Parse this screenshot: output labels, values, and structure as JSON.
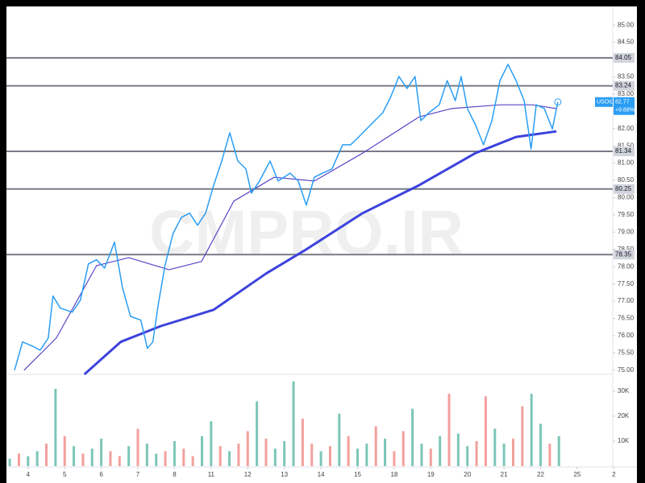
{
  "chart_data": {
    "type": "line",
    "watermark": "CMPRO.IR",
    "xlim": [
      -0.59,
      15.97
    ],
    "xticks": [
      {
        "value": 0,
        "label": "4"
      },
      {
        "value": 1,
        "label": "5"
      },
      {
        "value": 2,
        "label": "6"
      },
      {
        "value": 3,
        "label": "7"
      },
      {
        "value": 4,
        "label": "8"
      },
      {
        "value": 5,
        "label": "11"
      },
      {
        "value": 6,
        "label": "12"
      },
      {
        "value": 7,
        "label": "13"
      },
      {
        "value": 8,
        "label": "14"
      },
      {
        "value": 9,
        "label": "15"
      },
      {
        "value": 10,
        "label": "18"
      },
      {
        "value": 11,
        "label": "19"
      },
      {
        "value": 12,
        "label": "20"
      },
      {
        "value": 13,
        "label": "21"
      },
      {
        "value": 14,
        "label": "22"
      },
      {
        "value": 15,
        "label": "25"
      },
      {
        "value": 16,
        "label": "2"
      }
    ],
    "ylim": [
      74.88,
      85.54
    ],
    "yticks": [
      {
        "value": 75,
        "label": "75.00"
      },
      {
        "value": 75.5,
        "label": "75.50"
      },
      {
        "value": 76,
        "label": "76.00"
      },
      {
        "value": 76.5,
        "label": "76.50"
      },
      {
        "value": 77,
        "label": "77.00"
      },
      {
        "value": 77.5,
        "label": "77.50"
      },
      {
        "value": 78,
        "label": "78.00"
      },
      {
        "value": 78.5,
        "label": "78.50"
      },
      {
        "value": 79,
        "label": "79.00"
      },
      {
        "value": 79.5,
        "label": "79.50"
      },
      {
        "value": 80,
        "label": "80.00"
      },
      {
        "value": 80.5,
        "label": "80.50"
      },
      {
        "value": 81,
        "label": "81.00"
      },
      {
        "value": 81.5,
        "label": "81.50"
      },
      {
        "value": 82,
        "label": "82.00"
      },
      {
        "value": 82.5,
        "label": "82.50"
      },
      {
        "value": 83,
        "label": "83.00"
      },
      {
        "value": 83.5,
        "label": "83.50"
      },
      {
        "value": 84,
        "label": "84.00"
      },
      {
        "value": 84.5,
        "label": "84.50"
      },
      {
        "value": 85,
        "label": "85.00"
      }
    ],
    "series": [
      {
        "name": "USOIL",
        "color": "#2a9df4",
        "width": 1.5,
        "x": [
          -0.37,
          -0.15,
          0.11,
          0.33,
          0.55,
          0.68,
          0.88,
          1.21,
          1.43,
          1.65,
          1.87,
          2.09,
          2.36,
          2.58,
          2.8,
          3.08,
          3.26,
          3.41,
          3.55,
          3.74,
          3.96,
          4.19,
          4.41,
          4.63,
          4.85,
          5.07,
          5.29,
          5.51,
          5.73,
          5.95,
          6.1,
          6.32,
          6.61,
          6.83,
          7.16,
          7.38,
          7.6,
          7.82,
          8.04,
          8.3,
          8.59,
          8.81,
          9.03,
          9.36,
          9.69,
          9.91,
          10.13,
          10.35,
          10.57,
          10.73,
          10.95,
          11.23,
          11.45,
          11.67,
          11.83,
          12.0,
          12.22,
          12.44,
          12.67,
          12.89,
          13.11,
          13.33,
          13.55,
          13.74,
          13.88,
          14.1,
          14.32,
          14.47
        ],
        "values": [
          75.0,
          75.82,
          75.7,
          75.58,
          75.93,
          77.15,
          76.8,
          76.68,
          77.03,
          78.08,
          78.2,
          77.96,
          78.71,
          77.38,
          76.56,
          76.45,
          75.63,
          75.82,
          76.86,
          78.03,
          78.96,
          79.43,
          79.55,
          79.2,
          79.55,
          80.36,
          81.06,
          81.88,
          81.06,
          80.83,
          80.13,
          80.48,
          81.06,
          80.48,
          80.71,
          80.48,
          79.78,
          80.59,
          80.71,
          80.83,
          81.53,
          81.53,
          81.76,
          82.11,
          82.46,
          82.93,
          83.51,
          83.16,
          83.51,
          82.23,
          82.46,
          82.69,
          83.39,
          82.81,
          83.51,
          82.58,
          82.11,
          81.53,
          82.23,
          83.39,
          83.86,
          83.39,
          82.81,
          81.41,
          82.69,
          82.58,
          81.99,
          82.77
        ]
      },
      {
        "color": "#5b45c8",
        "width": 1.2,
        "x": [
          -0.11,
          0.77,
          1.87,
          2.75,
          3.85,
          4.74,
          5.62,
          6.72,
          7.82,
          9.14,
          10.68,
          11.56,
          12.89,
          13.77,
          14.43
        ],
        "values": [
          75.0,
          75.93,
          78.03,
          78.26,
          77.91,
          78.15,
          79.9,
          80.59,
          80.48,
          81.29,
          82.34,
          82.58,
          82.69,
          82.69,
          82.58
        ]
      },
      {
        "color": "#3d43dc",
        "width": 3,
        "x": [
          1.54,
          2.53,
          3.63,
          5.07,
          6.5,
          7.6,
          9.14,
          10.68,
          12.22,
          13.33,
          14.43
        ],
        "values": [
          74.88,
          75.82,
          76.28,
          76.75,
          77.8,
          78.5,
          79.55,
          80.36,
          81.29,
          81.76,
          81.92
        ]
      }
    ],
    "levels": [
      84.05,
      83.24,
      81.34,
      80.25,
      78.35
    ],
    "level_color": "#787b86",
    "last_price": 82.77,
    "change": "+9.88%",
    "volume": {
      "ylim": [
        0,
        36800
      ],
      "yticks": [
        {
          "value": 10000,
          "label": "10K"
        },
        {
          "value": 20000,
          "label": "20K"
        },
        {
          "value": 30000,
          "label": "30K"
        }
      ],
      "up_color": "#7cc6b8",
      "down_color": "#f3a09c",
      "x": [
        -0.5,
        -0.25,
        0,
        0.25,
        0.5,
        0.75,
        1,
        1.25,
        1.5,
        1.75,
        2,
        2.25,
        2.5,
        2.75,
        3,
        3.25,
        3.5,
        3.75,
        4,
        4.25,
        4.5,
        4.75,
        5,
        5.25,
        5.5,
        5.75,
        6,
        6.25,
        6.5,
        6.75,
        7,
        7.25,
        7.5,
        7.75,
        8,
        8.25,
        8.5,
        8.75,
        9,
        9.25,
        9.5,
        9.75,
        10,
        10.25,
        10.5,
        10.75,
        11,
        11.25,
        11.5,
        11.75,
        12,
        12.25,
        12.5,
        12.75,
        13,
        13.25,
        13.5,
        13.75,
        14,
        14.25,
        14.5
      ],
      "values": [
        3000,
        5000,
        4000,
        6000,
        9000,
        31000,
        12000,
        8000,
        5000,
        7000,
        11000,
        6000,
        4000,
        8000,
        15000,
        9000,
        5000,
        6000,
        10000,
        7000,
        4000,
        12000,
        18000,
        8000,
        6000,
        9000,
        14000,
        26000,
        11000,
        7000,
        10000,
        34000,
        19000,
        9000,
        6000,
        8000,
        21000,
        12000,
        7000,
        9000,
        16000,
        11000,
        6000,
        14000,
        23000,
        9000,
        7000,
        12000,
        29000,
        13000,
        8000,
        10000,
        28000,
        15000,
        9000,
        11000,
        24000,
        29000,
        17000,
        9000,
        12000
      ],
      "up": [
        true,
        false,
        true,
        true,
        false,
        true,
        false,
        true,
        false,
        true,
        true,
        false,
        false,
        true,
        false,
        true,
        true,
        false,
        true,
        false,
        false,
        true,
        true,
        false,
        true,
        false,
        false,
        true,
        false,
        true,
        true,
        true,
        false,
        false,
        true,
        false,
        true,
        false,
        true,
        true,
        false,
        true,
        false,
        false,
        true,
        true,
        false,
        true,
        false,
        true,
        true,
        false,
        false,
        true,
        true,
        false,
        false,
        true,
        true,
        false,
        true
      ]
    }
  }
}
